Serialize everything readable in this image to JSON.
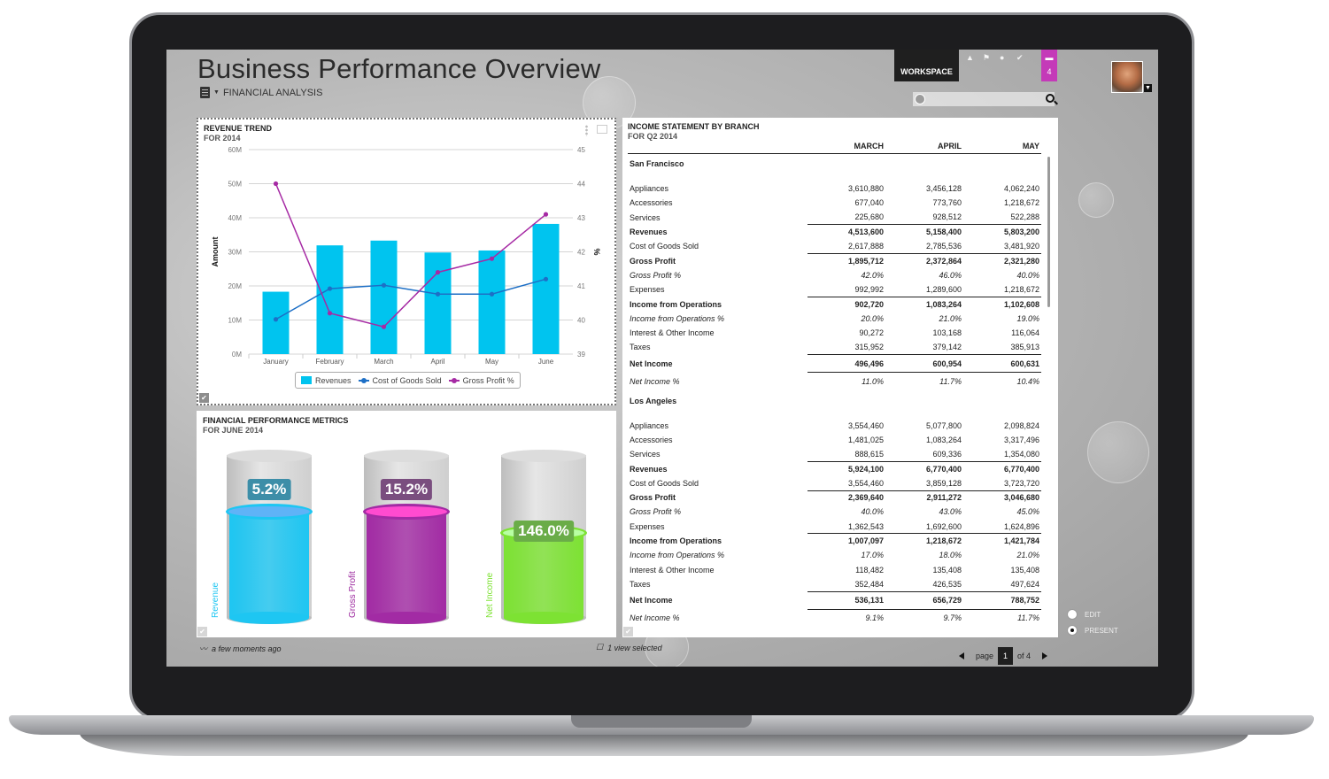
{
  "header": {
    "title": "Business Performance Overview",
    "subtitle": "FINANCIAL ANALYSIS",
    "workspace_label": "WORKSPACE",
    "chat_count": "4"
  },
  "revenue_panel": {
    "title": "REVENUE TREND",
    "subtitle": "FOR 2014",
    "y_label": "Amount",
    "y2_label": "%",
    "legend": [
      "Revenues",
      "Cost of Goods Sold",
      "Gross Profit %"
    ]
  },
  "chart_data": {
    "type": "bar",
    "categories": [
      "January",
      "February",
      "March",
      "April",
      "May",
      "June"
    ],
    "series": [
      {
        "name": "Revenues",
        "type": "bar",
        "axis": "left",
        "values": [
          18.3,
          31.9,
          33.3,
          29.8,
          30.4,
          38.2
        ]
      },
      {
        "name": "Cost of Goods Sold",
        "type": "line",
        "axis": "left",
        "values": [
          10.2,
          19.2,
          20.2,
          17.6,
          17.6,
          22.0
        ]
      },
      {
        "name": "Gross Profit %",
        "type": "line",
        "axis": "right",
        "values": [
          44.0,
          40.2,
          39.8,
          41.4,
          41.8,
          43.1
        ]
      }
    ],
    "y_ticks": [
      "60M",
      "50M",
      "40M",
      "30M",
      "20M",
      "10M",
      "0M"
    ],
    "y2_ticks": [
      "45",
      "44",
      "43",
      "42",
      "41",
      "40",
      "39"
    ],
    "ylim": [
      0,
      60
    ],
    "y2lim": [
      39,
      45
    ],
    "ylabel": "Amount",
    "y2label": "%",
    "grid": true,
    "legend_position": "bottom",
    "colors": {
      "Revenues": "#00c4ef",
      "Cost of Goods Sold": "#1d6fc6",
      "Gross Profit %": "#a62aa4"
    }
  },
  "metrics_panel": {
    "title": "FINANCIAL PERFORMANCE METRICS",
    "subtitle": "FOR JUNE 2014",
    "items": [
      {
        "label": "Revenue",
        "value": "5.2%",
        "level": 0.65,
        "color": "#1ec6f2",
        "ring": "#5fb3f7",
        "badge": "#3d8ea8",
        "text": "#1ec6f2"
      },
      {
        "label": "Gross Profit",
        "value": "15.2%",
        "level": 0.65,
        "color": "#a22ba4",
        "ring": "#ff4bd0",
        "badge": "#7a4e7f",
        "text": "#9d2a9f"
      },
      {
        "label": "Net Income",
        "value": "146.0%",
        "level": 0.52,
        "color": "#7de233",
        "ring": "#b8ffa3",
        "badge": "#6aac48",
        "text": "#7de233"
      }
    ]
  },
  "income_panel": {
    "title": "INCOME STATEMENT BY BRANCH",
    "subtitle": "FOR Q2 2014",
    "columns": [
      "MARCH",
      "APRIL",
      "MAY"
    ],
    "branches": [
      {
        "name": "San Francisco",
        "rows": [
          {
            "label": "Appliances",
            "values": [
              "3,610,880",
              "3,456,128",
              "4,062,240"
            ],
            "style": ""
          },
          {
            "label": "Accessories",
            "values": [
              "677,040",
              "773,760",
              "1,218,672"
            ],
            "style": ""
          },
          {
            "label": "Services",
            "values": [
              "225,680",
              "928,512",
              "522,288"
            ],
            "style": ""
          },
          {
            "label": "Revenues",
            "values": [
              "4,513,600",
              "5,158,400",
              "5,803,200"
            ],
            "style": "b line"
          },
          {
            "label": "Cost of Goods Sold",
            "values": [
              "2,617,888",
              "2,785,536",
              "3,481,920"
            ],
            "style": ""
          },
          {
            "label": "Gross Profit",
            "values": [
              "1,895,712",
              "2,372,864",
              "2,321,280"
            ],
            "style": "b line"
          },
          {
            "label": "Gross Profit %",
            "values": [
              "42.0%",
              "46.0%",
              "40.0%"
            ],
            "style": "i"
          },
          {
            "label": "Expenses",
            "values": [
              "992,992",
              "1,289,600",
              "1,218,672"
            ],
            "style": ""
          },
          {
            "label": "Income from Operations",
            "values": [
              "902,720",
              "1,083,264",
              "1,102,608"
            ],
            "style": "b line"
          },
          {
            "label": "Income from Operations %",
            "values": [
              "20.0%",
              "21.0%",
              "19.0%"
            ],
            "style": "i"
          },
          {
            "label": "Interest & Other Income",
            "values": [
              "90,272",
              "103,168",
              "116,064"
            ],
            "style": ""
          },
          {
            "label": "Taxes",
            "values": [
              "315,952",
              "379,142",
              "385,913"
            ],
            "style": ""
          },
          {
            "label": "Net Income",
            "values": [
              "496,496",
              "600,954",
              "600,631"
            ],
            "style": "b line tall"
          },
          {
            "label": "Net Income %",
            "values": [
              "11.0%",
              "11.7%",
              "10.4%"
            ],
            "style": "i line tall"
          }
        ]
      },
      {
        "name": "Los Angeles",
        "rows": [
          {
            "label": "Appliances",
            "values": [
              "3,554,460",
              "5,077,800",
              "2,098,824"
            ],
            "style": ""
          },
          {
            "label": "Accessories",
            "values": [
              "1,481,025",
              "1,083,264",
              "3,317,496"
            ],
            "style": ""
          },
          {
            "label": "Services",
            "values": [
              "888,615",
              "609,336",
              "1,354,080"
            ],
            "style": ""
          },
          {
            "label": "Revenues",
            "values": [
              "5,924,100",
              "6,770,400",
              "6,770,400"
            ],
            "style": "b line"
          },
          {
            "label": "Cost of Goods Sold",
            "values": [
              "3,554,460",
              "3,859,128",
              "3,723,720"
            ],
            "style": ""
          },
          {
            "label": "Gross Profit",
            "values": [
              "2,369,640",
              "2,911,272",
              "3,046,680"
            ],
            "style": "b line"
          },
          {
            "label": "Gross Profit %",
            "values": [
              "40.0%",
              "43.0%",
              "45.0%"
            ],
            "style": "i"
          },
          {
            "label": "Expenses",
            "values": [
              "1,362,543",
              "1,692,600",
              "1,624,896"
            ],
            "style": ""
          },
          {
            "label": "Income from Operations",
            "values": [
              "1,007,097",
              "1,218,672",
              "1,421,784"
            ],
            "style": "b line"
          },
          {
            "label": "Income from Operations %",
            "values": [
              "17.0%",
              "18.0%",
              "21.0%"
            ],
            "style": "i"
          },
          {
            "label": "Interest & Other Income",
            "values": [
              "118,482",
              "135,408",
              "135,408"
            ],
            "style": ""
          },
          {
            "label": "Taxes",
            "values": [
              "352,484",
              "426,535",
              "497,624"
            ],
            "style": ""
          },
          {
            "label": "Net Income",
            "values": [
              "536,131",
              "656,729",
              "788,752"
            ],
            "style": "b line tall"
          },
          {
            "label": "Net Income %",
            "values": [
              "9.1%",
              "9.7%",
              "11.7%"
            ],
            "style": "i line tall"
          }
        ]
      }
    ]
  },
  "footer": {
    "updated": "a few moments ago",
    "selection": "1 view selected",
    "page_label": "page",
    "page_current": "1",
    "page_of": "of 4"
  },
  "mode": {
    "edit": "EDIT",
    "present": "PRESENT"
  }
}
